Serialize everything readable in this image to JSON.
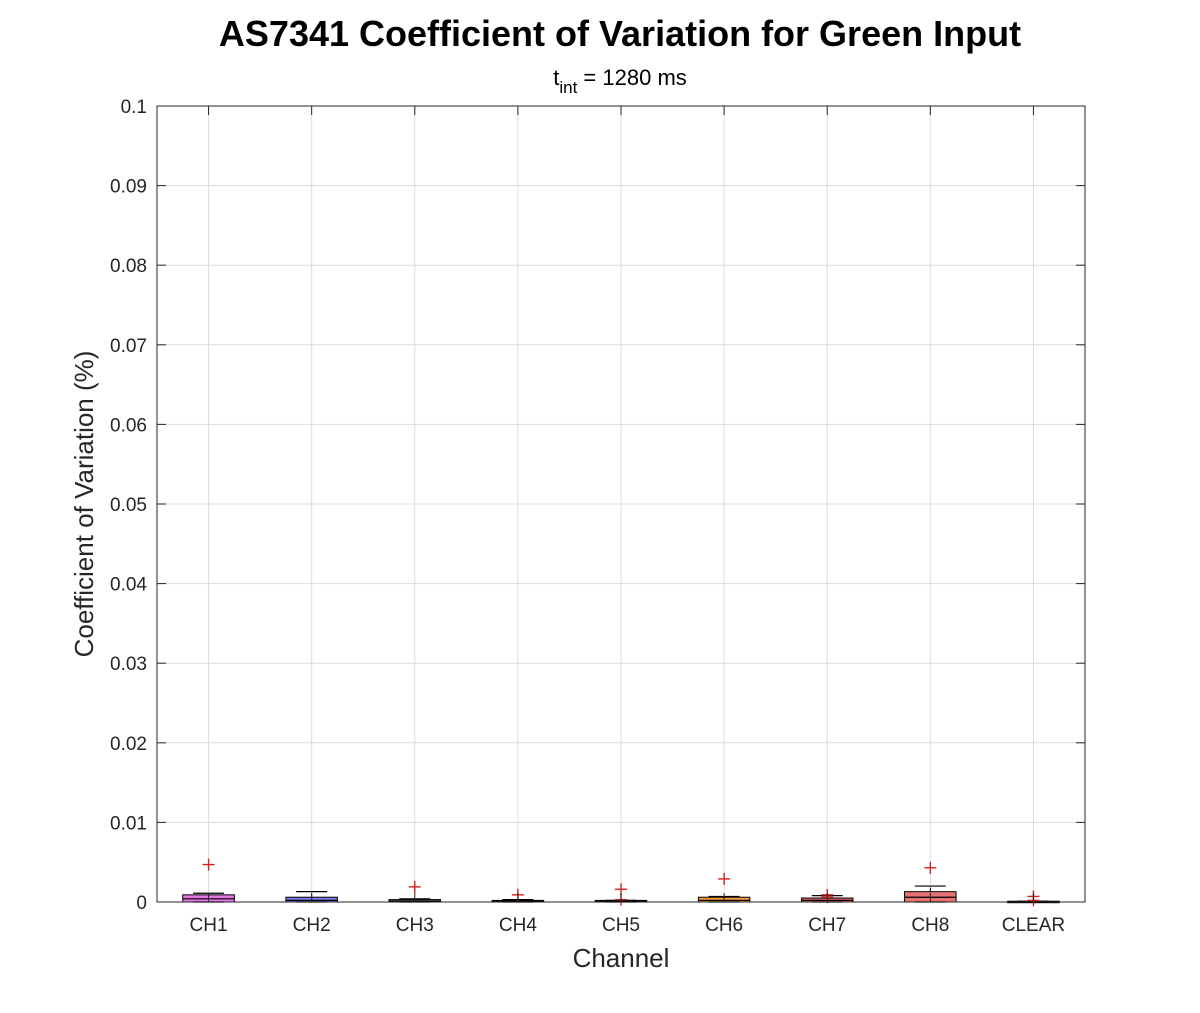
{
  "chart_data": {
    "type": "box",
    "title": "AS7341 Coefficient of Variation for Green Input",
    "subtitle_main": "t",
    "subtitle_sub": "int",
    "subtitle_rest": " = 1280 ms",
    "xlabel": "Channel",
    "ylabel": "Coefficient of Variation (%)",
    "ylim": [
      0,
      0.1
    ],
    "yticks": [
      "0",
      "0.01",
      "0.02",
      "0.03",
      "0.04",
      "0.05",
      "0.06",
      "0.07",
      "0.08",
      "0.09",
      "0.1"
    ],
    "grid": true,
    "categories": [
      "CH1",
      "CH2",
      "CH3",
      "CH4",
      "CH5",
      "CH6",
      "CH7",
      "CH8",
      "CLEAR"
    ],
    "boxes": [
      {
        "q1": 0.0,
        "median": 0.0004,
        "q3": 0.0009,
        "whisker_low": 0.0,
        "whisker_high": 0.0011,
        "outliers": [
          0.0047
        ],
        "color": "#e05ce0"
      },
      {
        "q1": 0.0,
        "median": 0.0002,
        "q3": 0.0006,
        "whisker_low": 0.0,
        "whisker_high": 0.0013,
        "outliers": [],
        "color": "#6666ff"
      },
      {
        "q1": 0.0,
        "median": 0.0001,
        "q3": 0.0003,
        "whisker_low": 0.0,
        "whisker_high": 0.0004,
        "outliers": [
          0.0019
        ],
        "color": "#4d4d4d"
      },
      {
        "q1": 0.0,
        "median": 0.0001,
        "q3": 0.0002,
        "whisker_low": 0.0,
        "whisker_high": 0.0003,
        "outliers": [
          0.0009
        ],
        "color": "#333333"
      },
      {
        "q1": 0.0,
        "median": 0.0001,
        "q3": 0.0002,
        "whisker_low": 0.0,
        "whisker_high": 0.0002,
        "outliers": [
          0.0016,
          0.0003
        ],
        "color": "#2b2b2b"
      },
      {
        "q1": 0.0,
        "median": 0.0002,
        "q3": 0.0006,
        "whisker_low": 0.0,
        "whisker_high": 0.0007,
        "outliers": [
          0.0029
        ],
        "color": "#ff8c1a"
      },
      {
        "q1": 0.0,
        "median": 0.0002,
        "q3": 0.0005,
        "whisker_low": 0.0,
        "whisker_high": 0.0008,
        "outliers": [
          0.0009,
          0.0006
        ],
        "color": "#e85050"
      },
      {
        "q1": 0.0,
        "median": 0.0006,
        "q3": 0.0013,
        "whisker_low": 0.0,
        "whisker_high": 0.002,
        "outliers": [
          0.0043
        ],
        "color": "#e05a5a"
      },
      {
        "q1": 0.0,
        "median": 0.0,
        "q3": 0.0001,
        "whisker_low": 0.0,
        "whisker_high": 0.0001,
        "outliers": [
          0.0007,
          0.0002
        ],
        "color": "#f0f0f0"
      }
    ]
  }
}
